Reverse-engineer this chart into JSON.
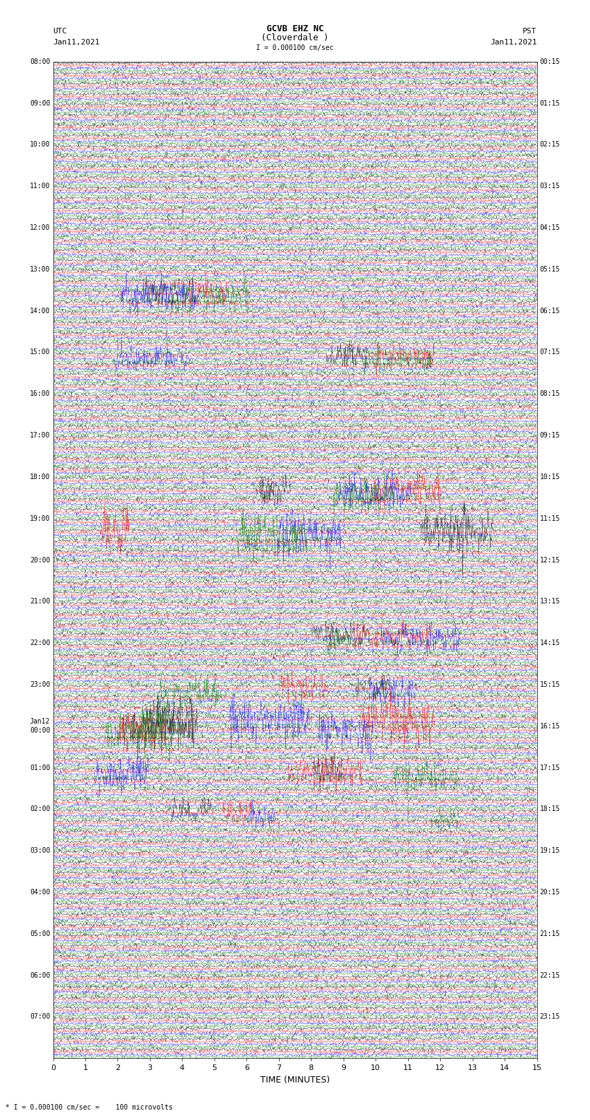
{
  "title_line1": "GCVB EHZ NC",
  "title_line2": "(Cloverdale )",
  "scale_label": "I = 0.000100 cm/sec",
  "left_header": "UTC",
  "left_date": "Jan11,2021",
  "right_header": "PST",
  "right_date": "Jan11,2021",
  "bottom_label": "TIME (MINUTES)",
  "footer_label": "* I = 0.000100 cm/sec =    100 microvolts",
  "xlabel_ticks": [
    0,
    1,
    2,
    3,
    4,
    5,
    6,
    7,
    8,
    9,
    10,
    11,
    12,
    13,
    14,
    15
  ],
  "xlim": [
    0,
    15
  ],
  "bg_color": "#ffffff",
  "trace_colors": [
    "black",
    "red",
    "blue",
    "green"
  ],
  "left_times_utc": [
    "08:00",
    "",
    "",
    "",
    "09:00",
    "",
    "",
    "",
    "10:00",
    "",
    "",
    "",
    "11:00",
    "",
    "",
    "",
    "12:00",
    "",
    "",
    "",
    "13:00",
    "",
    "",
    "",
    "14:00",
    "",
    "",
    "",
    "15:00",
    "",
    "",
    "",
    "16:00",
    "",
    "",
    "",
    "17:00",
    "",
    "",
    "",
    "18:00",
    "",
    "",
    "",
    "19:00",
    "",
    "",
    "",
    "20:00",
    "",
    "",
    "",
    "21:00",
    "",
    "",
    "",
    "22:00",
    "",
    "",
    "",
    "23:00",
    "",
    "",
    "",
    "Jan12|00:00",
    "",
    "",
    "",
    "01:00",
    "",
    "",
    "",
    "02:00",
    "",
    "",
    "",
    "03:00",
    "",
    "",
    "",
    "04:00",
    "",
    "",
    "",
    "05:00",
    "",
    "",
    "",
    "06:00",
    "",
    "",
    "",
    "07:00",
    "",
    "",
    ""
  ],
  "right_times_pst": [
    "00:15",
    "",
    "",
    "",
    "01:15",
    "",
    "",
    "",
    "02:15",
    "",
    "",
    "",
    "03:15",
    "",
    "",
    "",
    "04:15",
    "",
    "",
    "",
    "05:15",
    "",
    "",
    "",
    "06:15",
    "",
    "",
    "",
    "07:15",
    "",
    "",
    "",
    "08:15",
    "",
    "",
    "",
    "09:15",
    "",
    "",
    "",
    "10:15",
    "",
    "",
    "",
    "11:15",
    "",
    "",
    "",
    "12:15",
    "",
    "",
    "",
    "13:15",
    "",
    "",
    "",
    "14:15",
    "",
    "",
    "",
    "15:15",
    "",
    "",
    "",
    "16:15",
    "",
    "",
    "",
    "17:15",
    "",
    "",
    "",
    "18:15",
    "",
    "",
    "",
    "19:15",
    "",
    "",
    "",
    "20:15",
    "",
    "",
    "",
    "21:15",
    "",
    "",
    "",
    "22:15",
    "",
    "",
    "",
    "23:15",
    "",
    "",
    ""
  ],
  "n_rows": 96,
  "n_traces_per_row": 4,
  "noise_amplitude": 0.12,
  "figsize": [
    8.5,
    16.13
  ],
  "dpi": 100,
  "grid_color": "#cccccc",
  "grid_alpha": 0.8,
  "event_rows": [
    22,
    28,
    41,
    45,
    55,
    60,
    63,
    64,
    68,
    72
  ],
  "event_amplitudes": [
    1.2,
    1.0,
    1.5,
    2.0,
    1.0,
    1.2,
    1.8,
    1.5,
    1.3,
    1.0
  ]
}
